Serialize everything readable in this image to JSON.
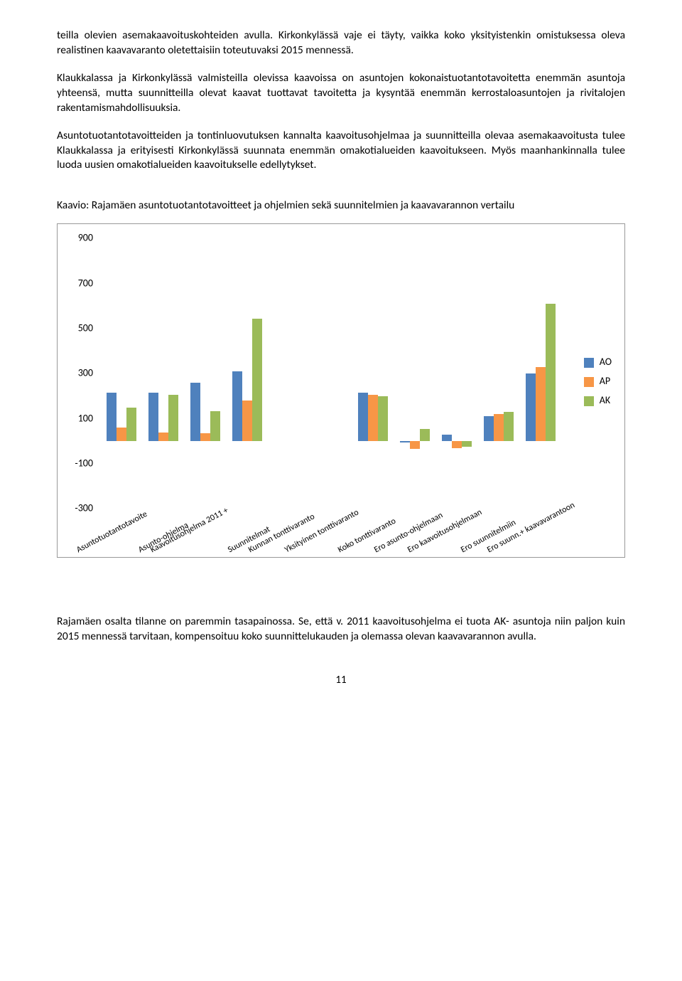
{
  "paragraphs": {
    "p1": "teilla olevien asemakaavoituskohteiden avulla. Kirkonkylässä vaje ei täyty, vaikka koko yksityistenkin omistuksessa oleva realistinen kaavavaranto oletettaisiin toteutuvaksi 2015 mennessä.",
    "p2": "Klaukkalassa ja Kirkonkylässä valmisteilla olevissa kaavoissa on asuntojen kokonaistuotantotavoitetta enemmän asuntoja yhteensä, mutta suunnitteilla olevat kaavat tuottavat tavoitetta ja kysyntää enemmän kerrostaloasuntojen ja rivitalojen rakentamismahdollisuuksia.",
    "p3": "Asuntotuotantotavoitteiden ja tontinluovutuksen kannalta kaavoitusohjelmaa ja suunnitteilla olevaa asemakaavoitusta tulee Klaukkalassa ja erityisesti Kirkonkylässä suunnata enemmän omakotialueiden kaavoitukseen. Myös maanhankinnalla tulee luoda uusien omakotialueiden kaavoitukselle edellytykset.",
    "caption": "Kaavio: Rajamäen asuntotuotantotavoitteet ja ohjelmien sekä suunnitelmien ja kaavavarannon vertailu",
    "p4": "Rajamäen osalta tilanne on paremmin tasapainossa. Se, että v. 2011 kaavoitusohjelma ei tuota AK- asuntoja niin paljon kuin 2015 mennessä tarvitaan, kompensoituu koko suunnittelukauden ja olemassa olevan kaavavarannon avulla."
  },
  "page_number": "11",
  "chart": {
    "type": "bar",
    "ylim": [
      -300,
      900
    ],
    "yticks": [
      -300,
      -100,
      100,
      300,
      500,
      700,
      900
    ],
    "categories": [
      "Asuntotuotantotavoite",
      "Asunto-ohjelma",
      "Kaavoitusohjelma 2011 +",
      "Suunnitelmat",
      "Kunnan tonttivaranto",
      "Yksityinen tonttivaranto",
      "Koko tonttivaranto",
      "Ero asunto-ohjelmaan",
      "Ero kaavoitusohjelmaan",
      "Ero suunnitelmiin",
      "Ero suunn.+ kaavavarantoon"
    ],
    "series": [
      {
        "name": "AO",
        "color": "#4f81bd",
        "values": [
          215,
          215,
          260,
          310,
          0,
          0,
          215,
          -5,
          30,
          110,
          300
        ]
      },
      {
        "name": "AP",
        "color": "#f79646",
        "values": [
          60,
          40,
          35,
          180,
          0,
          0,
          205,
          -35,
          -30,
          120,
          330
        ]
      },
      {
        "name": "AK",
        "color": "#9bbb59",
        "values": [
          150,
          205,
          135,
          545,
          0,
          0,
          200,
          55,
          -25,
          130,
          610
        ]
      }
    ],
    "background_color": "#ffffff",
    "text_color": "#000000",
    "axis_fontsize": 14,
    "legend_fontsize": 14,
    "xlabel_offsets": [
      -66,
      -38,
      -80,
      -30,
      -60,
      -68,
      -52,
      -60,
      -72,
      -56,
      -78
    ]
  }
}
